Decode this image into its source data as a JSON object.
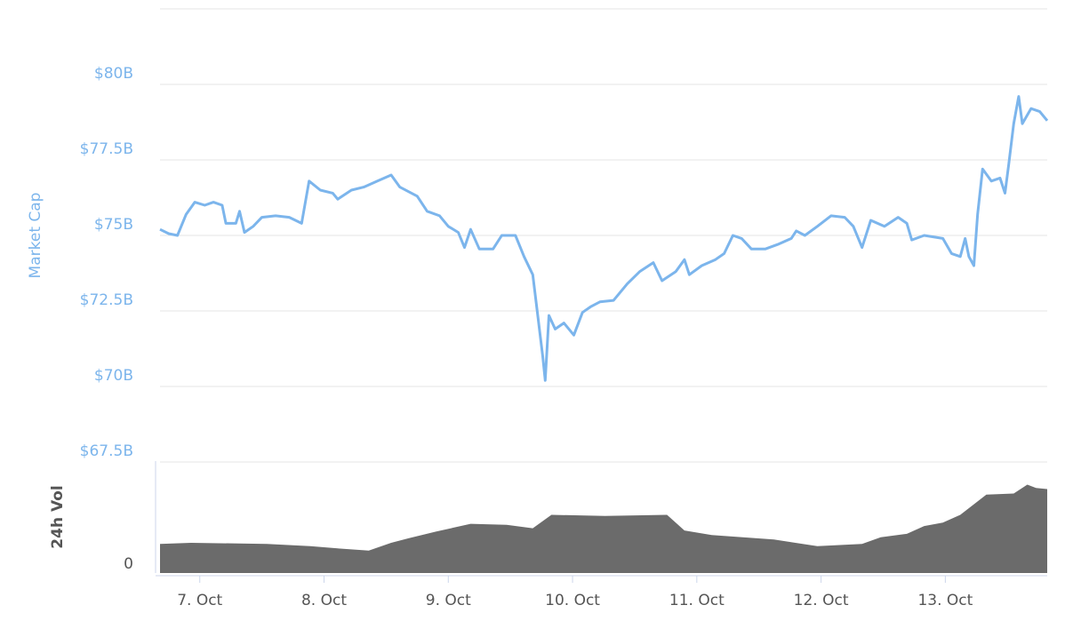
{
  "chart_data": [
    {
      "type": "line",
      "y_label": "Market Cap",
      "x": [
        6.68,
        6.75,
        6.82,
        6.89,
        6.96,
        7.04,
        7.11,
        7.18,
        7.21,
        7.29,
        7.32,
        7.36,
        7.43,
        7.5,
        7.61,
        7.72,
        7.82,
        7.88,
        7.97,
        8.07,
        8.11,
        8.22,
        8.32,
        8.43,
        8.54,
        8.61,
        8.75,
        8.83,
        8.93,
        9.0,
        9.08,
        9.13,
        9.18,
        9.25,
        9.36,
        9.43,
        9.54,
        9.61,
        9.68,
        9.72,
        9.76,
        9.78,
        9.81,
        9.86,
        9.93,
        10.01,
        10.08,
        10.15,
        10.22,
        10.33,
        10.44,
        10.54,
        10.65,
        10.72,
        10.83,
        10.9,
        10.94,
        11.04,
        11.15,
        11.22,
        11.29,
        11.36,
        11.44,
        11.55,
        11.65,
        11.76,
        11.8,
        11.87,
        11.97,
        12.08,
        12.19,
        12.26,
        12.33,
        12.4,
        12.51,
        12.62,
        12.69,
        12.73,
        12.83,
        12.98,
        13.05,
        13.12,
        13.16,
        13.19,
        13.23,
        13.26,
        13.3,
        13.37,
        13.44,
        13.48,
        13.51,
        13.55,
        13.59,
        13.62,
        13.69,
        13.76,
        13.82
      ],
      "series": [
        {
          "name": "Market Cap",
          "color": "#7cb5ec",
          "values": [
            75.2,
            75.06,
            75.0,
            75.7,
            76.1,
            76.0,
            76.1,
            76.0,
            75.4,
            75.4,
            75.8,
            75.1,
            75.3,
            75.6,
            75.65,
            75.6,
            75.4,
            76.8,
            76.5,
            76.4,
            76.2,
            76.5,
            76.6,
            76.8,
            77.0,
            76.6,
            76.3,
            75.8,
            75.65,
            75.3,
            75.1,
            74.6,
            75.2,
            74.55,
            74.55,
            75.0,
            75.0,
            74.3,
            73.7,
            72.35,
            71.0,
            70.2,
            72.35,
            71.9,
            72.1,
            71.7,
            72.45,
            72.65,
            72.8,
            72.85,
            73.4,
            73.8,
            74.1,
            73.5,
            73.8,
            74.2,
            73.7,
            74.0,
            74.2,
            74.4,
            75.0,
            74.9,
            74.55,
            74.55,
            74.7,
            74.9,
            75.15,
            75.0,
            75.3,
            75.65,
            75.6,
            75.3,
            74.6,
            75.5,
            75.3,
            75.6,
            75.4,
            74.85,
            75.0,
            74.9,
            74.4,
            74.3,
            74.9,
            74.3,
            74.0,
            75.7,
            77.2,
            76.8,
            76.9,
            76.4,
            77.35,
            78.7,
            79.6,
            78.7,
            79.2,
            79.1,
            78.8
          ]
        }
      ],
      "xlim": [
        6.68,
        13.82
      ],
      "ylim": [
        67.5,
        82.5
      ],
      "yticks": [
        {
          "value": 67.5,
          "label": "$67.5B"
        },
        {
          "value": 70,
          "label": "$70B"
        },
        {
          "value": 72.5,
          "label": "$72.5B"
        },
        {
          "value": 75,
          "label": "$75B"
        },
        {
          "value": 77.5,
          "label": "$77.5B"
        },
        {
          "value": 80,
          "label": "$80B"
        }
      ],
      "grid": true
    },
    {
      "type": "area",
      "y_label": "24h Vol",
      "x": [
        6.68,
        6.93,
        7.54,
        7.89,
        8.11,
        8.36,
        8.54,
        8.68,
        8.9,
        9.18,
        9.47,
        9.68,
        9.83,
        10.26,
        10.76,
        10.9,
        11.12,
        11.62,
        11.97,
        12.33,
        12.48,
        12.69,
        12.83,
        12.98,
        13.12,
        13.26,
        13.33,
        13.55,
        13.66,
        13.73,
        13.82
      ],
      "series": [
        {
          "name": "24h Vol",
          "color": "#6b6b6b",
          "values": [
            26,
            27,
            26,
            24,
            22,
            20,
            27,
            31,
            37,
            44,
            43,
            40,
            52,
            51,
            52,
            38,
            34,
            30,
            24,
            26,
            32,
            35,
            42,
            45,
            52,
            64,
            70,
            71,
            79,
            76,
            75
          ]
        }
      ],
      "xlim": [
        6.68,
        13.82
      ],
      "ylim": [
        0,
        100
      ],
      "yticks": [
        0
      ],
      "xticks": [
        {
          "value": 7,
          "label": "7. Oct"
        },
        {
          "value": 8,
          "label": "8. Oct"
        },
        {
          "value": 9,
          "label": "9. Oct"
        },
        {
          "value": 10,
          "label": "10. Oct"
        },
        {
          "value": 11,
          "label": "11. Oct"
        },
        {
          "value": 12,
          "label": "12. Oct"
        },
        {
          "value": 13,
          "label": "13. Oct"
        }
      ]
    }
  ]
}
